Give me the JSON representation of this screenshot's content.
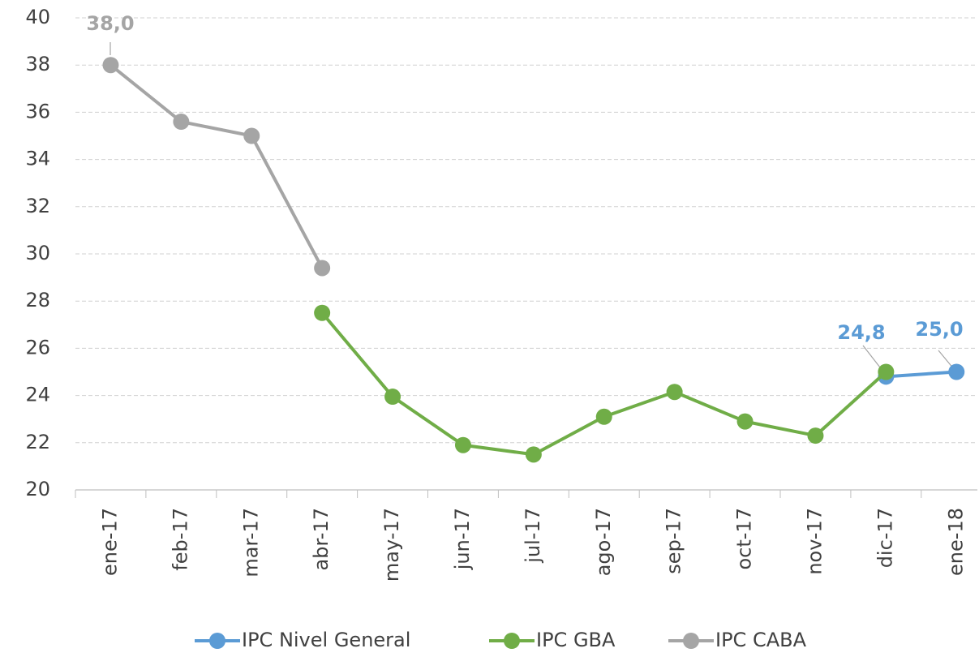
{
  "chart_data": {
    "type": "line",
    "categories": [
      "ene-17",
      "feb-17",
      "mar-17",
      "abr-17",
      "may-17",
      "jun-17",
      "jul-17",
      "ago-17",
      "sep-17",
      "oct-17",
      "nov-17",
      "dic-17",
      "ene-18"
    ],
    "series": [
      {
        "name": "IPC Nivel General",
        "color": "#5b9bd5",
        "values": [
          null,
          null,
          null,
          null,
          null,
          null,
          null,
          null,
          null,
          null,
          null,
          24.8,
          25.0
        ],
        "value_labels": [
          null,
          null,
          null,
          null,
          null,
          null,
          null,
          null,
          null,
          null,
          null,
          "24,8",
          "25,0"
        ]
      },
      {
        "name": "IPC GBA",
        "color": "#70ad47",
        "values": [
          null,
          null,
          null,
          27.5,
          23.95,
          21.9,
          21.5,
          23.1,
          24.15,
          22.9,
          22.3,
          25.0,
          null
        ]
      },
      {
        "name": "IPC CABA",
        "color": "#a5a5a5",
        "values": [
          38.0,
          35.6,
          35.0,
          29.4,
          null,
          null,
          null,
          null,
          null,
          null,
          null,
          null,
          null
        ],
        "value_labels": [
          "38,0",
          null,
          null,
          null,
          null,
          null,
          null,
          null,
          null,
          null,
          null,
          null,
          null
        ]
      }
    ],
    "ylim": [
      20,
      40
    ],
    "yticks": [
      20,
      22,
      24,
      26,
      28,
      30,
      32,
      34,
      36,
      38,
      40
    ],
    "grid": true,
    "legend": "bottom"
  }
}
